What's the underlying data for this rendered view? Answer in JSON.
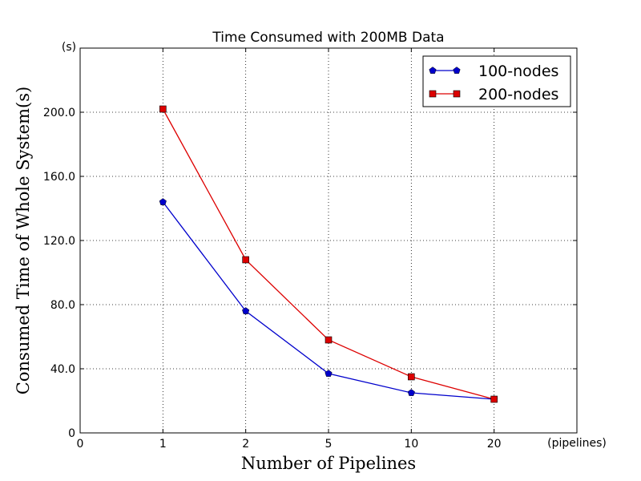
{
  "chart_data": {
    "type": "line",
    "title": "Time Consumed with 200MB Data",
    "xlabel": "Number of Pipelines",
    "ylabel": "Consumed Time of Whole System(s)",
    "x_unit_label": "(pipelines)",
    "y_unit_label": "(s)",
    "categories": [
      "1",
      "2",
      "5",
      "10",
      "20"
    ],
    "x_ticks": [
      "0",
      "1",
      "2",
      "5",
      "10",
      "20"
    ],
    "y_ticks": [
      "0",
      "40.0",
      "80.0",
      "120.0",
      "160.0",
      "200.0"
    ],
    "ylim": [
      0,
      240
    ],
    "grid": true,
    "legend_position": "top-right",
    "series": [
      {
        "name": "100-nodes",
        "color": "#0000cc",
        "marker": "pentagon",
        "values": [
          144,
          76,
          37,
          25,
          21
        ]
      },
      {
        "name": "200-nodes",
        "color": "#dd0000",
        "marker": "square",
        "values": [
          202,
          108,
          58,
          35,
          21
        ]
      }
    ]
  }
}
